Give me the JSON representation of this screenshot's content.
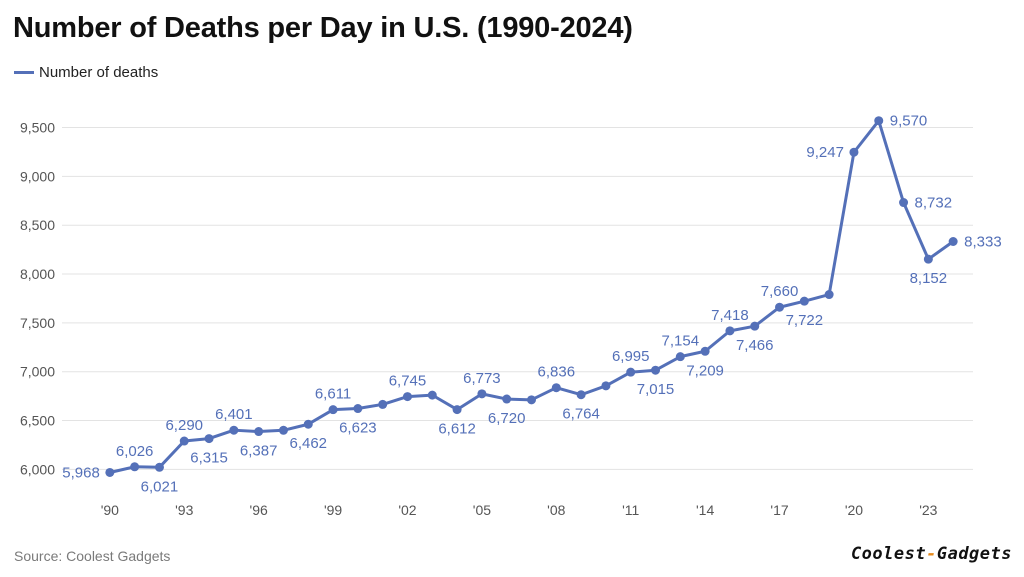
{
  "title": "Number of Deaths per Day in U.S. (1990-2024)",
  "legend": {
    "label": "Number of deaths",
    "color": "#5470b8"
  },
  "source": "Source: Coolest Gadgets",
  "logo": {
    "part1": "Coolest",
    "dash": "-",
    "part2": "Gadgets",
    "accent": "#e5891b"
  },
  "chart_data": {
    "type": "line",
    "title": "Number of Deaths per Day in U.S. (1990-2024)",
    "xlabel": "",
    "ylabel": "",
    "ylim": [
      5850,
      9700
    ],
    "yticks": [
      6000,
      6500,
      7000,
      7500,
      8000,
      8500,
      9000,
      9500
    ],
    "ytick_labels": [
      "6,000",
      "6,500",
      "7,000",
      "7,500",
      "8,000",
      "8,500",
      "9,000",
      "9,500"
    ],
    "xlim": [
      1989.2,
      2024.8
    ],
    "xticks": [
      1990,
      1993,
      1996,
      1999,
      2002,
      2005,
      2008,
      2011,
      2014,
      2017,
      2020,
      2023
    ],
    "xtick_labels": [
      "'90",
      "'93",
      "'96",
      "'99",
      "'02",
      "'05",
      "'08",
      "'11",
      "'14",
      "'17",
      "'20",
      "'23"
    ],
    "grid": true,
    "series": [
      {
        "name": "Number of deaths",
        "color": "#5470b8",
        "x": [
          1990,
          1991,
          1992,
          1993,
          1994,
          1995,
          1996,
          1997,
          1998,
          1999,
          2000,
          2001,
          2002,
          2003,
          2004,
          2005,
          2006,
          2007,
          2008,
          2009,
          2010,
          2011,
          2012,
          2013,
          2014,
          2015,
          2016,
          2017,
          2018,
          2019,
          2020,
          2021,
          2022,
          2023,
          2024
        ],
        "values": [
          5968,
          6026,
          6021,
          6290,
          6315,
          6401,
          6387,
          6400,
          6462,
          6611,
          6623,
          6665,
          6745,
          6760,
          6612,
          6773,
          6720,
          6712,
          6836,
          6764,
          6855,
          6995,
          7015,
          7154,
          7209,
          7418,
          7466,
          7660,
          7722,
          7790,
          9247,
          9570,
          8732,
          8152,
          8333
        ]
      }
    ],
    "data_labels": [
      {
        "index": 0,
        "text": "5,968",
        "position": "left"
      },
      {
        "index": 1,
        "text": "6,026",
        "position": "above"
      },
      {
        "index": 2,
        "text": "6,021",
        "position": "below"
      },
      {
        "index": 3,
        "text": "6,290",
        "position": "above"
      },
      {
        "index": 4,
        "text": "6,315",
        "position": "below"
      },
      {
        "index": 5,
        "text": "6,401",
        "position": "above"
      },
      {
        "index": 6,
        "text": "6,387",
        "position": "below"
      },
      {
        "index": 8,
        "text": "6,462",
        "position": "below"
      },
      {
        "index": 9,
        "text": "6,611",
        "position": "above"
      },
      {
        "index": 10,
        "text": "6,623",
        "position": "below"
      },
      {
        "index": 12,
        "text": "6,745",
        "position": "above"
      },
      {
        "index": 14,
        "text": "6,612",
        "position": "below"
      },
      {
        "index": 15,
        "text": "6,773",
        "position": "above"
      },
      {
        "index": 16,
        "text": "6,720",
        "position": "below"
      },
      {
        "index": 18,
        "text": "6,836",
        "position": "above"
      },
      {
        "index": 19,
        "text": "6,764",
        "position": "below"
      },
      {
        "index": 21,
        "text": "6,995",
        "position": "above"
      },
      {
        "index": 22,
        "text": "7,015",
        "position": "below"
      },
      {
        "index": 23,
        "text": "7,154",
        "position": "above"
      },
      {
        "index": 24,
        "text": "7,209",
        "position": "below"
      },
      {
        "index": 25,
        "text": "7,418",
        "position": "above"
      },
      {
        "index": 26,
        "text": "7,466",
        "position": "below"
      },
      {
        "index": 27,
        "text": "7,660",
        "position": "above"
      },
      {
        "index": 28,
        "text": "7,722",
        "position": "below"
      },
      {
        "index": 30,
        "text": "9,247",
        "position": "left"
      },
      {
        "index": 31,
        "text": "9,570",
        "position": "right"
      },
      {
        "index": 32,
        "text": "8,732",
        "position": "right"
      },
      {
        "index": 33,
        "text": "8,152",
        "position": "below"
      },
      {
        "index": 34,
        "text": "8,333",
        "position": "right"
      }
    ]
  }
}
